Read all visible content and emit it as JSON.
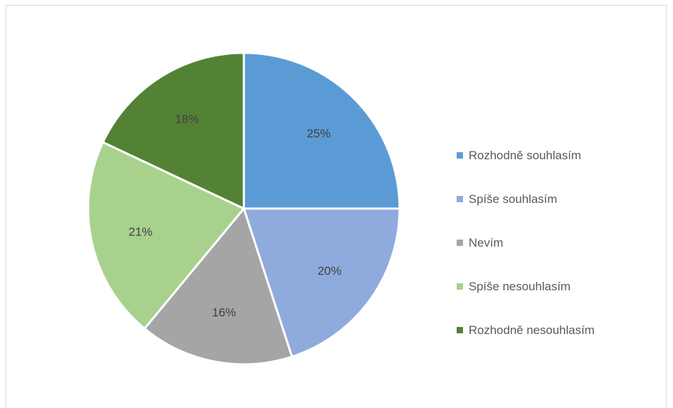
{
  "chart_data": {
    "type": "pie",
    "title": "",
    "slices": [
      {
        "label": "Rozhodně souhlasím",
        "value": 25,
        "value_label": "25%",
        "color": "#5b9bd5"
      },
      {
        "label": "Spíše souhlasím",
        "value": 20,
        "value_label": "20%",
        "color": "#8faadc"
      },
      {
        "label": "Nevím",
        "value": 16,
        "value_label": "16%",
        "color": "#a5a5a5"
      },
      {
        "label": "Spíše nesouhlasím",
        "value": 21,
        "value_label": "21%",
        "color": "#a9d18e"
      },
      {
        "label": "Rozhodně nesouhlasím",
        "value": 18,
        "value_label": "18%",
        "color": "#548235"
      }
    ],
    "legend_position": "right",
    "start": "top, clockwise"
  }
}
